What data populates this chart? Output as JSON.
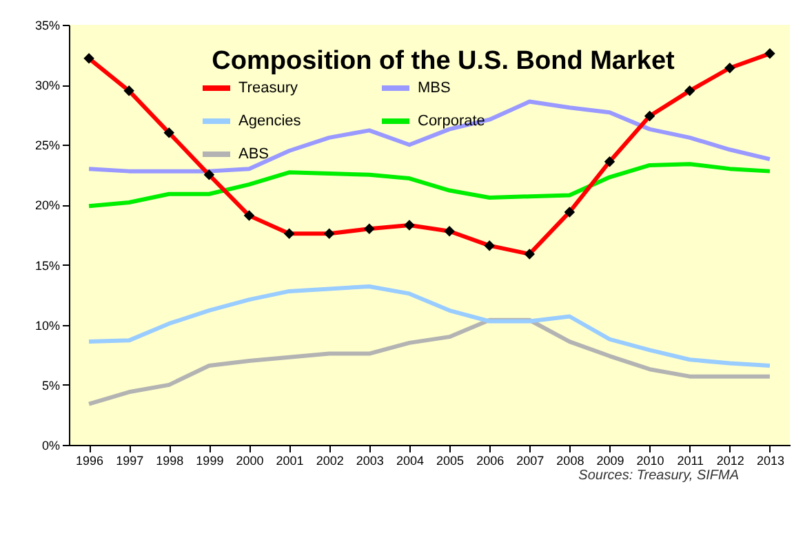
{
  "chart_data": {
    "type": "line",
    "title": "Composition of the U.S. Bond Market",
    "categories": [
      "1996",
      "1997",
      "1998",
      "1999",
      "2000",
      "2001",
      "2002",
      "2003",
      "2004",
      "2005",
      "2006",
      "2007",
      "2008",
      "2009",
      "2010",
      "2011",
      "2012",
      "2013"
    ],
    "series": [
      {
        "name": "Treasury",
        "color": "#ff0000",
        "marker": "diamond",
        "values": [
          32.2,
          29.5,
          26.0,
          22.5,
          19.1,
          17.6,
          17.6,
          18.0,
          18.3,
          17.8,
          16.6,
          15.9,
          19.4,
          23.6,
          27.4,
          29.5,
          31.4,
          32.6
        ]
      },
      {
        "name": "MBS",
        "color": "#9999ff",
        "values": [
          23.0,
          22.8,
          22.8,
          22.8,
          23.0,
          24.5,
          25.6,
          26.2,
          25.0,
          26.3,
          27.1,
          28.6,
          28.1,
          27.7,
          26.3,
          25.6,
          24.6,
          23.8
        ]
      },
      {
        "name": "Agencies",
        "color": "#99ccff",
        "values": [
          8.6,
          8.7,
          10.1,
          11.2,
          12.1,
          12.8,
          13.0,
          13.2,
          12.6,
          11.2,
          10.3,
          10.3,
          10.7,
          8.8,
          7.9,
          7.1,
          6.8,
          6.6
        ]
      },
      {
        "name": "Corporate",
        "color": "#00ee00",
        "values": [
          19.9,
          20.2,
          20.9,
          20.9,
          21.7,
          22.7,
          22.6,
          22.5,
          22.2,
          21.2,
          20.6,
          20.7,
          20.8,
          22.3,
          23.3,
          23.4,
          23.0,
          22.8
        ]
      },
      {
        "name": "ABS",
        "color": "#b3b3b3",
        "values": [
          3.4,
          4.4,
          5.0,
          6.6,
          7.0,
          7.3,
          7.6,
          7.6,
          8.5,
          9.0,
          10.4,
          10.4,
          8.6,
          7.4,
          6.3,
          5.7,
          5.7,
          5.7
        ]
      }
    ],
    "ylim": [
      0,
      35
    ],
    "yticks": [
      {
        "value": 0,
        "label": "0%"
      },
      {
        "value": 5,
        "label": "5%"
      },
      {
        "value": 10,
        "label": "10%"
      },
      {
        "value": 15,
        "label": "15%"
      },
      {
        "value": 20,
        "label": "20%"
      },
      {
        "value": 25,
        "label": "25%"
      },
      {
        "value": 30,
        "label": "30%"
      },
      {
        "value": 35,
        "label": "35%"
      }
    ],
    "grid": false,
    "legend": "top left",
    "annotations": [
      "Sources: Treasury, SIFMA"
    ]
  }
}
